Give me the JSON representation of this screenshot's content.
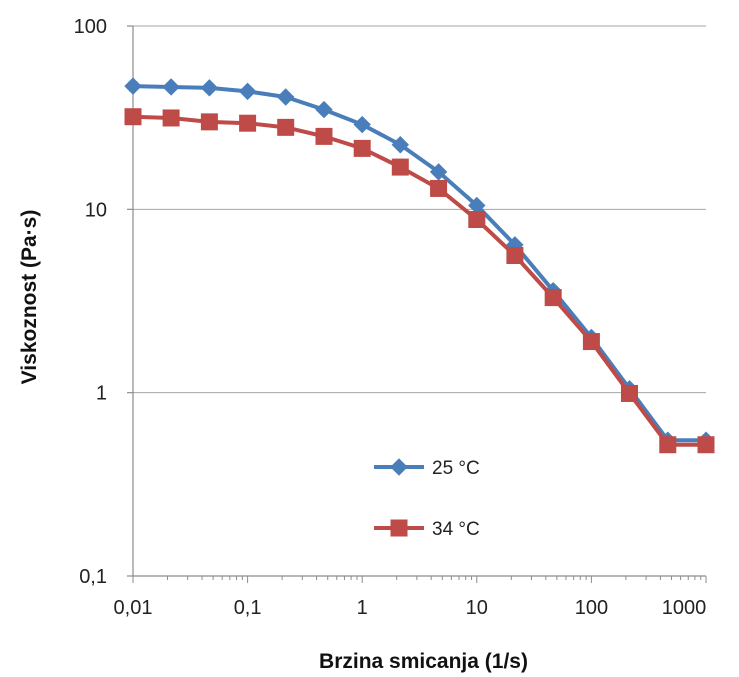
{
  "chart_data": {
    "type": "line",
    "title": "",
    "xlabel": "Brzina smicanja (1/s)",
    "ylabel": "Viskoznost  (Pa·s)",
    "x_scale": "log",
    "y_scale": "log",
    "xlim": [
      0.01,
      1000
    ],
    "ylim": [
      0.1,
      100
    ],
    "x_ticks": [
      0.01,
      0.1,
      1,
      10,
      100,
      1000
    ],
    "x_tick_labels": [
      "0,01",
      "0,1",
      "1",
      "10",
      "100",
      "1000"
    ],
    "y_ticks": [
      0.1,
      1,
      10,
      100
    ],
    "y_tick_labels": [
      "0,1",
      "1",
      "10",
      "100"
    ],
    "grid": "horizontal major lines",
    "legend_position": "lower-center inside plot",
    "x": [
      0.01,
      0.0215,
      0.0464,
      0.1,
      0.215,
      0.464,
      1.0,
      2.15,
      4.64,
      10,
      21.5,
      46.4,
      100,
      215,
      464,
      1000
    ],
    "series": [
      {
        "name": "25 °C",
        "marker": "diamond",
        "color": "#4a7ebb",
        "values": [
          47,
          46.5,
          46,
          44,
          41,
          35,
          29,
          22.5,
          16,
          10.5,
          6.4,
          3.6,
          2.0,
          1.05,
          0.55,
          0.55
        ]
      },
      {
        "name": "34 °C",
        "marker": "square",
        "color": "#be4b48",
        "values": [
          32,
          31.5,
          30,
          29.5,
          28,
          25,
          21.5,
          17,
          13,
          8.8,
          5.6,
          3.3,
          1.9,
          0.99,
          0.52,
          0.52
        ]
      }
    ]
  }
}
